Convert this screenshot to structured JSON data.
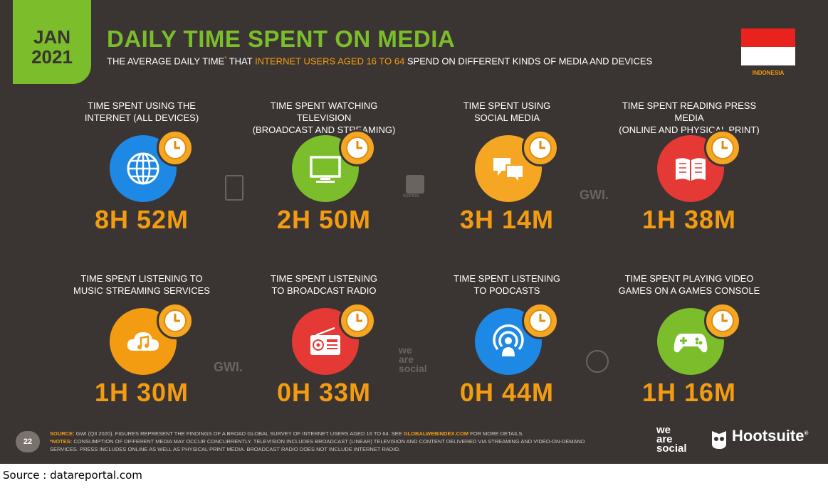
{
  "header": {
    "date_month": "JAN",
    "date_year": "2021",
    "title": "DAILY TIME SPENT ON MEDIA",
    "subtitle_part1": "THE AVERAGE DAILY TIME",
    "subtitle_star": "*",
    "subtitle_part2": " THAT ",
    "subtitle_highlight": "INTERNET USERS AGED 16 TO 64",
    "subtitle_part3": " SPEND ON DIFFERENT KINDS OF MEDIA AND DEVICES",
    "country": "INDONESIA"
  },
  "colors": {
    "background": "#3a3533",
    "accent_green": "#7bbd2a",
    "accent_orange": "#f39c12",
    "internet": "#1e88e5",
    "tv": "#7bbd2a",
    "social": "#f5a623",
    "press": "#e53935",
    "music": "#f39c12",
    "radio": "#e53935",
    "podcasts": "#1e88e5",
    "games": "#7bbd2a"
  },
  "cards": [
    {
      "label_line1": "TIME SPENT USING THE",
      "label_line2": "INTERNET (ALL DEVICES)",
      "value": "8H 52M",
      "icon": "globe-icon"
    },
    {
      "label_line1": "TIME SPENT WATCHING TELEVISION",
      "label_line2": "(BROADCAST AND STREAMING)",
      "value": "2H 50M",
      "icon": "tv-icon"
    },
    {
      "label_line1": "TIME SPENT USING",
      "label_line2": "SOCIAL MEDIA",
      "value": "3H 14M",
      "icon": "chat-icon"
    },
    {
      "label_line1": "TIME SPENT READING PRESS MEDIA",
      "label_line2": "(ONLINE AND PHYSICAL PRINT)",
      "value": "1H 38M",
      "icon": "book-icon"
    },
    {
      "label_line1": "TIME SPENT LISTENING TO",
      "label_line2": "MUSIC STREAMING SERVICES",
      "value": "1H 30M",
      "icon": "cloud-music-icon"
    },
    {
      "label_line1": "TIME SPENT LISTENING",
      "label_line2": "TO BROADCAST RADIO",
      "value": "0H 33M",
      "icon": "radio-icon"
    },
    {
      "label_line1": "TIME SPENT LISTENING",
      "label_line2": "TO PODCASTS",
      "value": "0H 44M",
      "icon": "podcast-icon"
    },
    {
      "label_line1": "TIME SPENT PLAYING VIDEO",
      "label_line2": "GAMES ON A GAMES CONSOLE",
      "value": "1H 16M",
      "icon": "gamepad-icon"
    }
  ],
  "watermarks": {
    "gwi": "GWI.",
    "kepios": "KEPIOS",
    "was_line1": "we",
    "was_line2": "are",
    "was_line3": "social"
  },
  "footer": {
    "page_number": "22",
    "source_label": "SOURCE:",
    "source_text": " GWI (Q3 2020). FIGURES REPRESENT THE FINDINGS OF A BROAD GLOBAL SURVEY OF INTERNET USERS AGED 16 TO 64. SEE ",
    "source_link": "GLOBALWEBINDEX.COM",
    "source_tail": " FOR MORE DETAILS.",
    "notes_label": "*NOTES:",
    "notes_text": " CONSUMPTION OF DIFFERENT MEDIA MAY OCCUR CONCURRENTLY. TELEVISION INCLUDES BROADCAST (LINEAR) TELEVISION AND CONTENT DELIVERED VIA STREAMING AND VIDEO-ON-DEMAND SERVICES. PRESS INCLUDES ONLINE AS WELL AS PHYSICAL PRINT MEDIA. BROADCAST RADIO DOES NOT INCLUDE INTERNET RADIO.",
    "logo_was_1": "we",
    "logo_was_2": "are",
    "logo_was_3": "social",
    "logo_hootsuite": "Hootsuite",
    "logo_hootsuite_mark": "®"
  },
  "caption": "Source : datareportal.com"
}
